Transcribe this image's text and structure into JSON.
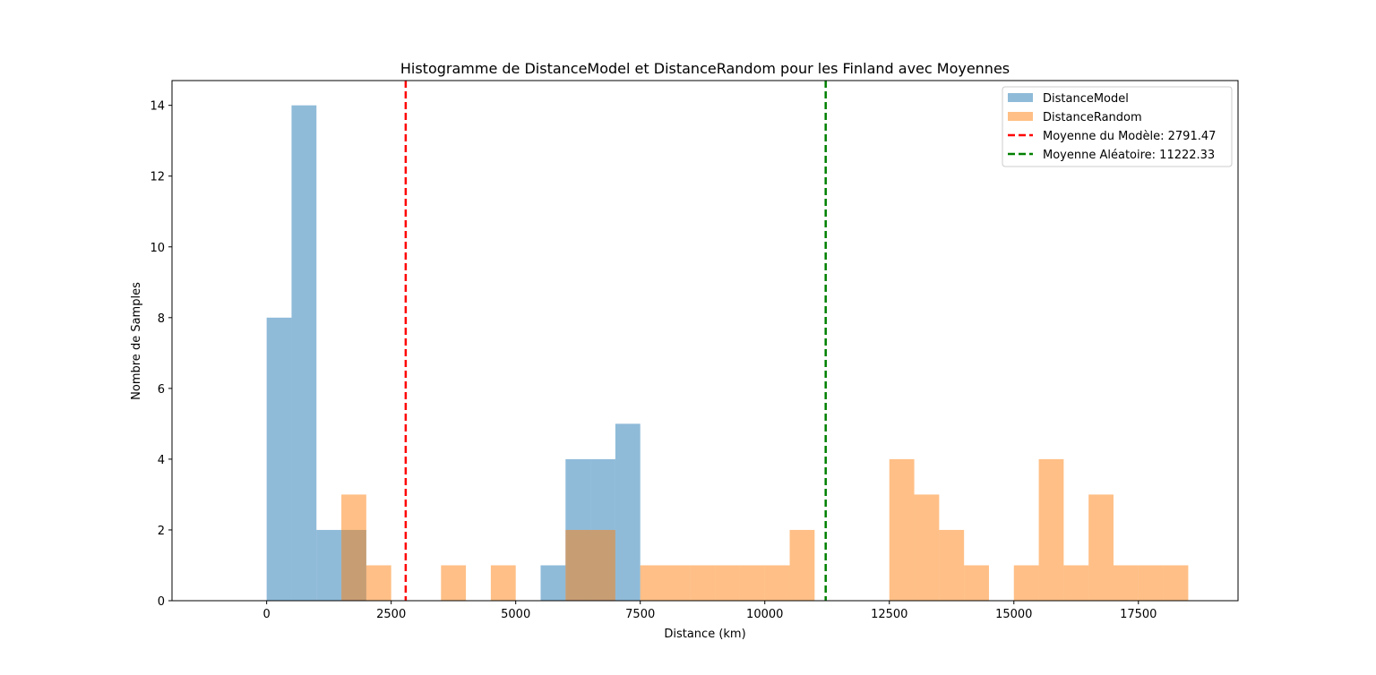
{
  "chart_data": {
    "type": "bar",
    "title": "Histogramme de DistanceModel et DistanceRandom pour les Finland avec Moyennes",
    "xlabel": "Distance (km)",
    "ylabel": "Nombre de Samples",
    "xlim": [
      -1900,
      19500
    ],
    "ylim": [
      0,
      14.7
    ],
    "xticks": [
      0,
      2500,
      5000,
      7500,
      10000,
      12500,
      15000,
      17500
    ],
    "yticks": [
      0,
      2,
      4,
      6,
      8,
      10,
      12,
      14
    ],
    "bin_width": 500,
    "legend_position": "top-right",
    "series": [
      {
        "name": "DistanceModel",
        "color": "#1f77b4",
        "alpha": 0.5,
        "bins": [
          {
            "x0": 0,
            "count": 8
          },
          {
            "x0": 500,
            "count": 14
          },
          {
            "x0": 1000,
            "count": 2
          },
          {
            "x0": 1500,
            "count": 2
          },
          {
            "x0": 5500,
            "count": 1
          },
          {
            "x0": 6000,
            "count": 4
          },
          {
            "x0": 6500,
            "count": 4
          },
          {
            "x0": 7000,
            "count": 5
          }
        ]
      },
      {
        "name": "DistanceRandom",
        "color": "#ff7f0e",
        "alpha": 0.5,
        "bins": [
          {
            "x0": 1500,
            "count": 3
          },
          {
            "x0": 2000,
            "count": 1
          },
          {
            "x0": 3500,
            "count": 1
          },
          {
            "x0": 4500,
            "count": 1
          },
          {
            "x0": 6000,
            "count": 2
          },
          {
            "x0": 6500,
            "count": 2
          },
          {
            "x0": 7500,
            "count": 1
          },
          {
            "x0": 8000,
            "count": 1
          },
          {
            "x0": 8500,
            "count": 1
          },
          {
            "x0": 9000,
            "count": 1
          },
          {
            "x0": 9500,
            "count": 1
          },
          {
            "x0": 10000,
            "count": 1
          },
          {
            "x0": 10500,
            "count": 2
          },
          {
            "x0": 12500,
            "count": 4
          },
          {
            "x0": 13000,
            "count": 3
          },
          {
            "x0": 13500,
            "count": 2
          },
          {
            "x0": 14000,
            "count": 1
          },
          {
            "x0": 15000,
            "count": 1
          },
          {
            "x0": 15500,
            "count": 4
          },
          {
            "x0": 16000,
            "count": 1
          },
          {
            "x0": 16500,
            "count": 3
          },
          {
            "x0": 17000,
            "count": 1
          },
          {
            "x0": 17500,
            "count": 1
          },
          {
            "x0": 18000,
            "count": 1
          }
        ]
      }
    ],
    "mean_lines": [
      {
        "name": "Moyenne du Modèle: 2791.47",
        "x": 2791.47,
        "color": "#ff0000"
      },
      {
        "name": "Moyenne Aléatoire: 11222.33",
        "x": 11222.33,
        "color": "#008000"
      }
    ]
  }
}
